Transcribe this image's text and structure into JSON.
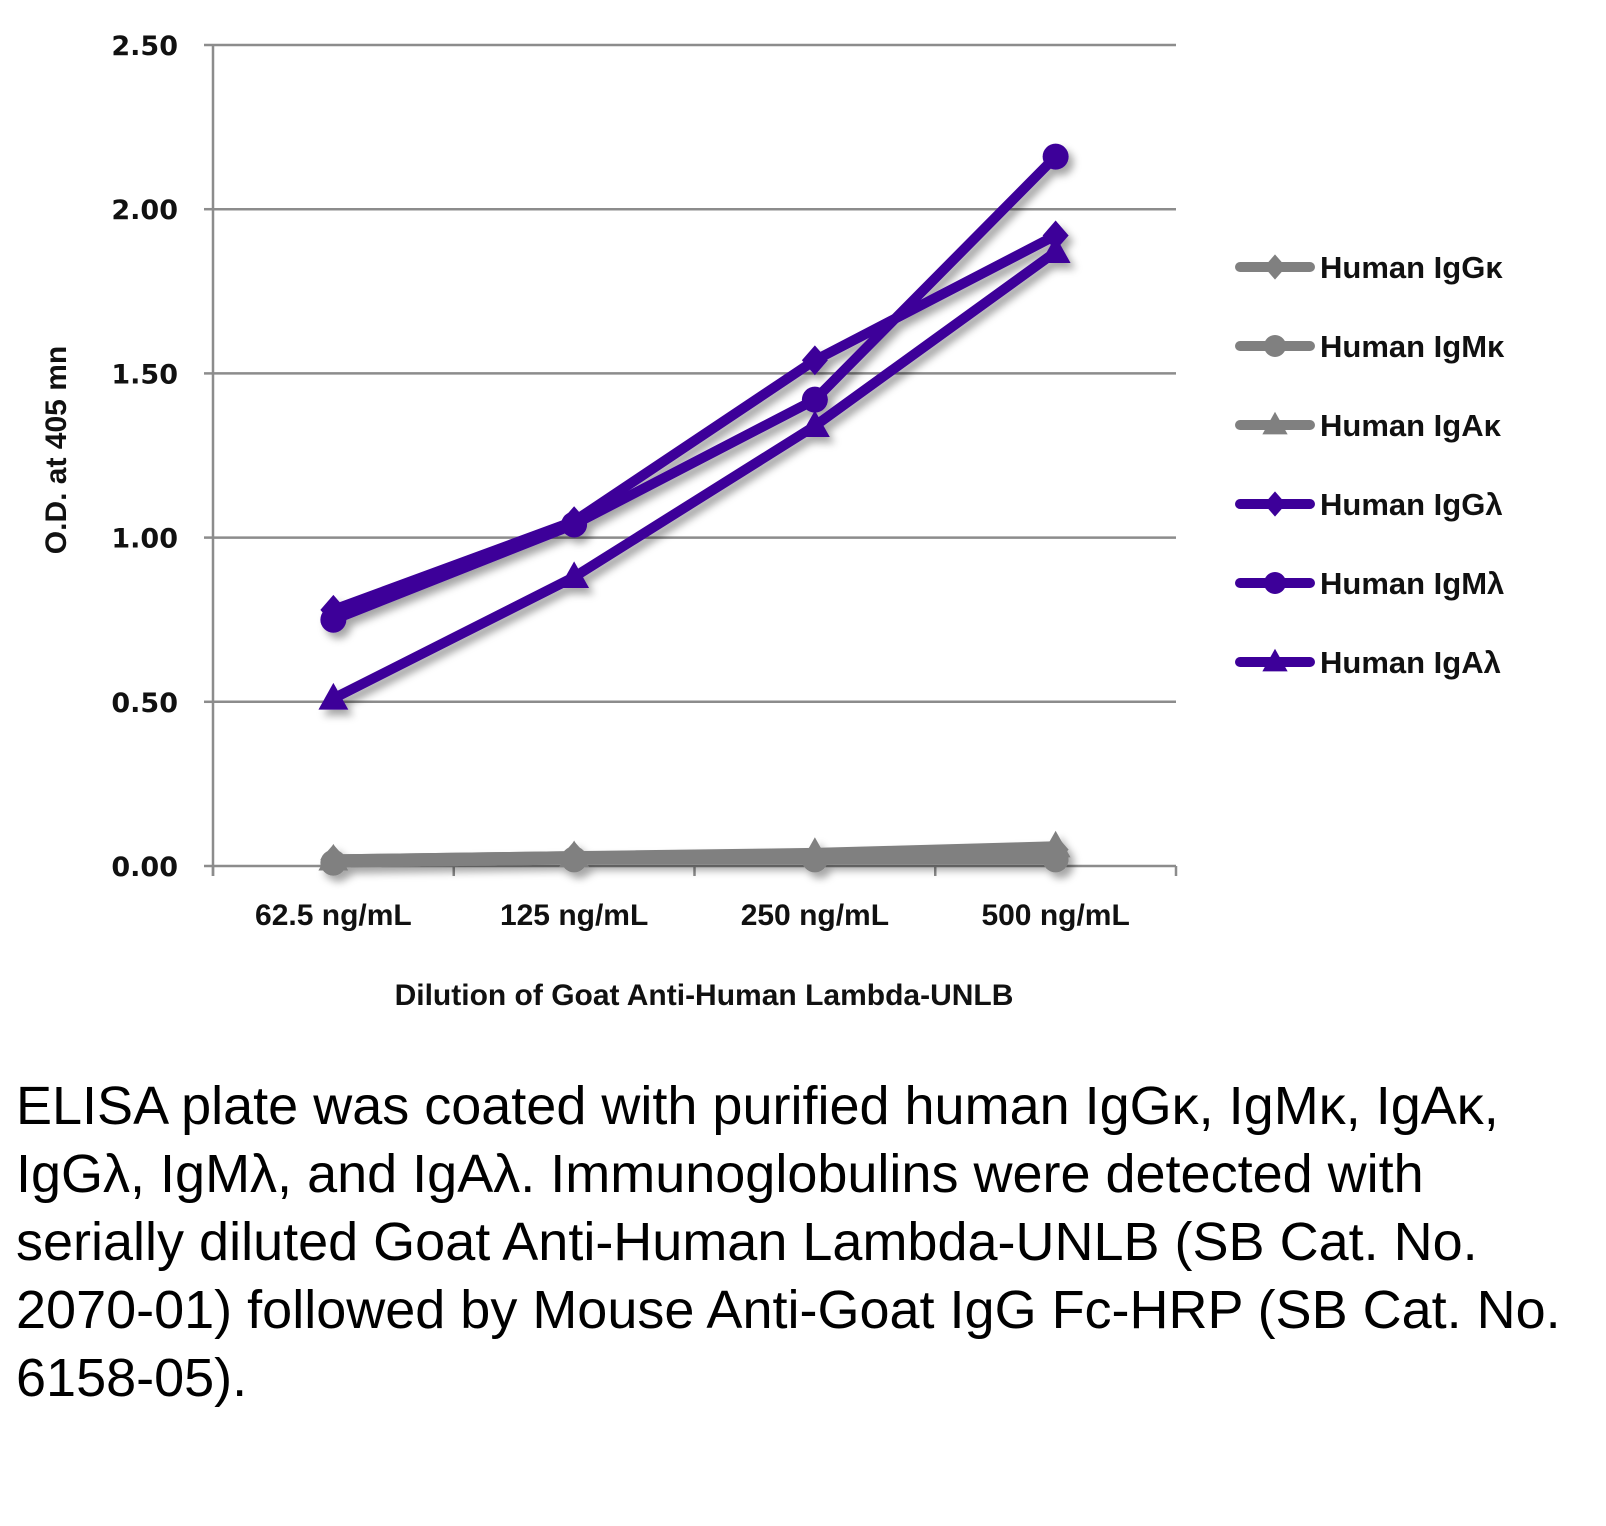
{
  "chart_data": {
    "type": "line",
    "title": "",
    "xlabel": "Dilution of Goat Anti-Human Lambda-UNLB",
    "ylabel": "O.D. at 405 mn",
    "ylim": [
      0,
      2.5
    ],
    "yticks": [
      "0.00",
      "0.50",
      "1.00",
      "1.50",
      "2.00",
      "2.50"
    ],
    "ytick_values": [
      0,
      0.5,
      1.0,
      1.5,
      2.0,
      2.5
    ],
    "grid": true,
    "legend_position": "right",
    "categories": [
      "62.5 ng/mL",
      "125 ng/mL",
      "250 ng/mL",
      "500 ng/mL"
    ],
    "series": [
      {
        "name": "Human IgGκ",
        "marker": "diamond",
        "color": "#808080",
        "values": [
          0.02,
          0.03,
          0.03,
          0.05
        ]
      },
      {
        "name": "Human IgMκ",
        "marker": "circle",
        "color": "#808080",
        "values": [
          0.01,
          0.02,
          0.02,
          0.02
        ]
      },
      {
        "name": "Human IgAκ",
        "marker": "triangle",
        "color": "#808080",
        "values": [
          0.02,
          0.03,
          0.04,
          0.06
        ]
      },
      {
        "name": "Human IgGλ",
        "marker": "diamond",
        "color": "#3d0099",
        "values": [
          0.78,
          1.05,
          1.54,
          1.92
        ]
      },
      {
        "name": "Human IgMλ",
        "marker": "circle",
        "color": "#3d0099",
        "values": [
          0.75,
          1.04,
          1.42,
          2.16
        ]
      },
      {
        "name": "Human IgAλ",
        "marker": "triangle",
        "color": "#3d0099",
        "values": [
          0.51,
          0.88,
          1.34,
          1.87
        ]
      }
    ]
  },
  "caption": "ELISA plate was coated with purified human IgGκ, IgMκ, IgAκ, IgGλ, IgMλ, and IgAλ. Immunoglobulins were detected with serially diluted Goat Anti-Human Lambda-UNLB (SB Cat. No. 2070-01) followed by Mouse Anti-Goat IgG Fc-HRP (SB Cat. No. 6158-05)."
}
